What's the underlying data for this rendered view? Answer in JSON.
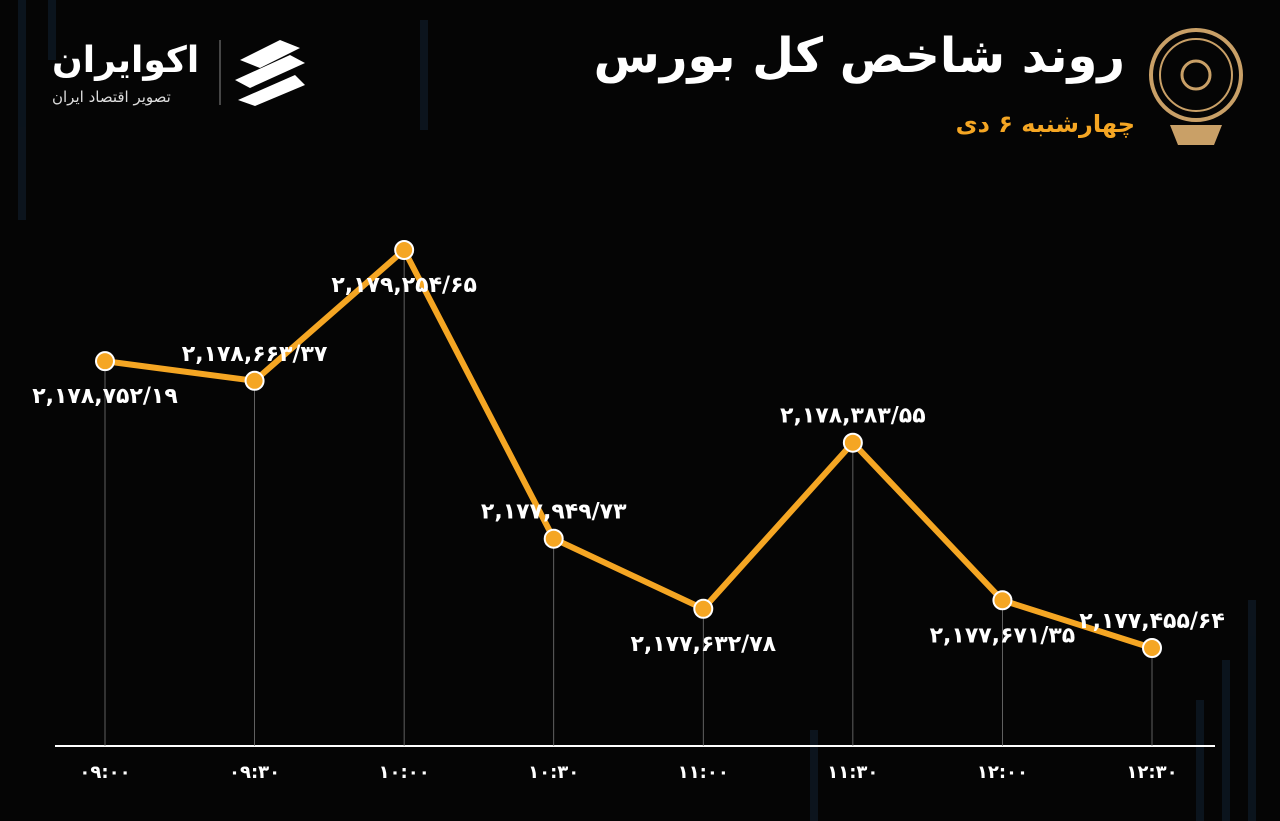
{
  "brand": {
    "name": "اکوایران",
    "tagline": "تصویر اقتصاد ایران"
  },
  "chart_data": {
    "type": "line",
    "title": "روند شاخص کل بورس",
    "subtitle": "چهارشنبه ۶ دی",
    "categories": [
      "۰۹:۰۰",
      "۰۹:۳۰",
      "۱۰:۰۰",
      "۱۰:۳۰",
      "۱۱:۰۰",
      "۱۱:۳۰",
      "۱۲:۰۰",
      "۱۲:۳۰"
    ],
    "series": [
      {
        "name": "شاخص کل",
        "color": "#f5a623",
        "values": [
          2178752.19,
          2178663.37,
          2179254.65,
          2177949.73,
          2177632.78,
          2178383.55,
          2177671.35,
          2177455.64
        ],
        "value_labels": [
          "۲,۱۷۸,۷۵۲/۱۹",
          "۲,۱۷۸,۶۶۳/۳۷",
          "۲,۱۷۹,۲۵۴/۶۵",
          "۲,۱۷۷,۹۴۹/۷۳",
          "۲,۱۷۷,۶۳۲/۷۸",
          "۲,۱۷۸,۳۸۳/۵۵",
          "۲,۱۷۷,۶۷۱/۳۵",
          "۲,۱۷۷,۴۵۵/۶۴"
        ]
      }
    ]
  }
}
